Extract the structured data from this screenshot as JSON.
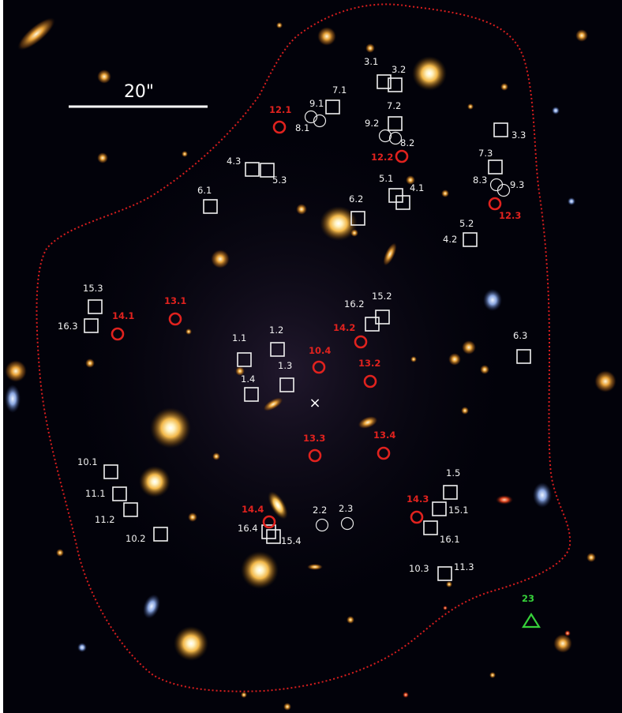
{
  "scale_bar": {
    "label": "20\""
  },
  "center_marker": {
    "symbol": "×"
  },
  "colors": {
    "background": "#02020a",
    "critical_curve": "#d81e1e",
    "square_marker": "#f0f0f0",
    "red_marker": "#e0221e",
    "green_marker": "#36d13a"
  },
  "markers": {
    "squares": [
      {
        "id": "sq-3-1"
      },
      {
        "id": "sq-3-2"
      },
      {
        "id": "sq-7-1"
      },
      {
        "id": "sq-7-2"
      },
      {
        "id": "sq-3-3"
      },
      {
        "id": "sq-7-3"
      },
      {
        "id": "sq-4-3"
      },
      {
        "id": "sq-5-3"
      },
      {
        "id": "sq-6-1"
      },
      {
        "id": "sq-6-2"
      },
      {
        "id": "sq-5-1"
      },
      {
        "id": "sq-4-1"
      },
      {
        "id": "sq-4-2"
      },
      {
        "id": "sq-15-3"
      },
      {
        "id": "sq-16-3"
      },
      {
        "id": "sq-16-2"
      },
      {
        "id": "sq-15-2"
      },
      {
        "id": "sq-1-1"
      },
      {
        "id": "sq-1-2"
      },
      {
        "id": "sq-1-3"
      },
      {
        "id": "sq-1-4"
      },
      {
        "id": "sq-6-3"
      },
      {
        "id": "sq-10-1"
      },
      {
        "id": "sq-11-1"
      },
      {
        "id": "sq-11-2"
      },
      {
        "id": "sq-10-2"
      },
      {
        "id": "sq-16-4"
      },
      {
        "id": "sq-15-4"
      },
      {
        "id": "sq-1-5"
      },
      {
        "id": "sq-15-1"
      },
      {
        "id": "sq-16-1"
      },
      {
        "id": "sq-11-3"
      }
    ],
    "white_circles": [
      {
        "id": "wc-9-1"
      },
      {
        "id": "wc-8-1"
      },
      {
        "id": "wc-9-2"
      },
      {
        "id": "wc-8-2"
      },
      {
        "id": "wc-8-3"
      },
      {
        "id": "wc-9-3"
      },
      {
        "id": "wc-2-2"
      },
      {
        "id": "wc-2-3"
      }
    ],
    "red_circles": [
      {
        "id": "rc-12-1"
      },
      {
        "id": "rc-12-2"
      },
      {
        "id": "rc-12-3"
      },
      {
        "id": "rc-13-1"
      },
      {
        "id": "rc-14-1"
      },
      {
        "id": "rc-14-2"
      },
      {
        "id": "rc-10-4"
      },
      {
        "id": "rc-13-2"
      },
      {
        "id": "rc-13-3"
      },
      {
        "id": "rc-13-4"
      },
      {
        "id": "rc-14-4"
      },
      {
        "id": "rc-14-3"
      }
    ]
  },
  "labels": {
    "l31": "3.1",
    "l32": "3.2",
    "l71": "7.1",
    "l91": "9.1",
    "l81": "8.1",
    "l121": "12.1",
    "l72": "7.2",
    "l92": "9.2",
    "l82": "8.2",
    "l33": "3.3",
    "l122": "12.2",
    "l73": "7.3",
    "l83": "8.3",
    "l93": "9.3",
    "l123": "12.3",
    "l43": "4.3",
    "l53": "5.3",
    "l61": "6.1",
    "l62": "6.2",
    "l51": "5.1",
    "l41": "4.1",
    "l52": "5.2",
    "l42": "4.2",
    "l153": "15.3",
    "l163": "16.3",
    "l141": "14.1",
    "l131": "13.1",
    "l162": "16.2",
    "l152": "15.2",
    "l142": "14.2",
    "l11": "1.1",
    "l12": "1.2",
    "l104": "10.4",
    "l13": "1.3",
    "l132": "13.2",
    "l14": "1.4",
    "l63": "6.3",
    "l133": "13.3",
    "l134": "13.4",
    "l101": "10.1",
    "l111": "11.1",
    "l112": "11.2",
    "l102": "10.2",
    "l144": "14.4",
    "l164": "16.4",
    "l154": "15.4",
    "l22": "2.2",
    "l23": "2.3",
    "l15": "1.5",
    "l143": "14.3",
    "l151": "15.1",
    "l161": "16.1",
    "l103": "10.3",
    "l113": "11.3",
    "l23green": "23"
  }
}
